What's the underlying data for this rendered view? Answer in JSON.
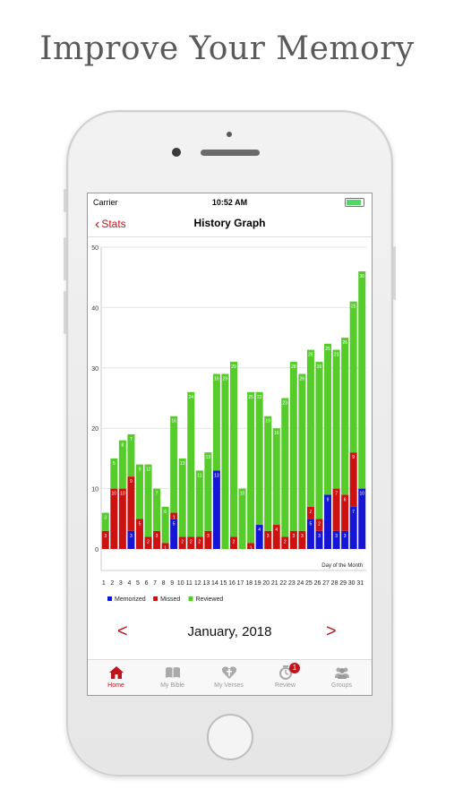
{
  "headline": "Improve Your Memory",
  "status_bar": {
    "carrier": "Carrier",
    "time": "10:52 AM"
  },
  "nav": {
    "back_label": "Stats",
    "title": "History Graph"
  },
  "chart_data": {
    "type": "bar",
    "stacked": true,
    "xlabel": "Day of the Month",
    "ylim": [
      0,
      50
    ],
    "yticks": [
      0,
      10,
      20,
      30,
      40,
      50
    ],
    "categories": [
      1,
      2,
      3,
      4,
      5,
      6,
      7,
      8,
      9,
      10,
      11,
      12,
      13,
      14,
      15,
      16,
      17,
      18,
      19,
      20,
      21,
      22,
      23,
      24,
      25,
      26,
      27,
      28,
      29,
      30,
      31
    ],
    "series": [
      {
        "name": "Memorized",
        "color": "#1515d6",
        "values": [
          0,
          0,
          0,
          3,
          0,
          0,
          0,
          0,
          5,
          0,
          0,
          0,
          0,
          13,
          0,
          0,
          0,
          0,
          4,
          0,
          0,
          0,
          0,
          0,
          5,
          3,
          9,
          3,
          3,
          7,
          10
        ],
        "labels": [
          "",
          "",
          "",
          "3",
          "",
          "",
          "",
          "",
          "5",
          "",
          "",
          "",
          "",
          "13",
          "",
          "",
          "",
          "",
          "4",
          "",
          "",
          "",
          "",
          "",
          "5",
          "3",
          "9",
          "3",
          "3",
          "7",
          "10"
        ]
      },
      {
        "name": "Missed",
        "color": "#cc1111",
        "values": [
          3,
          10,
          10,
          9,
          5,
          2,
          3,
          1,
          1,
          2,
          2,
          2,
          3,
          0,
          0,
          2,
          0,
          1,
          0,
          3,
          4,
          2,
          3,
          3,
          2,
          2,
          0,
          7,
          6,
          9,
          0
        ],
        "labels": [
          "3",
          "10",
          "10",
          "9",
          "5",
          "2",
          "3",
          "1",
          "1",
          "2",
          "2",
          "2",
          "3",
          "",
          "",
          "2",
          "",
          "1",
          "",
          "3",
          "4",
          "2",
          "3",
          "3",
          "2",
          "2",
          "",
          "7",
          "6",
          "9",
          ""
        ]
      },
      {
        "name": "Reviewed",
        "color": "#55cc2a",
        "values": [
          3,
          5,
          8,
          7,
          9,
          12,
          7,
          6,
          16,
          13,
          24,
          11,
          13,
          16,
          29,
          29,
          10,
          25,
          22,
          19,
          16,
          23,
          28,
          26,
          26,
          26,
          25,
          23,
          26,
          25,
          36
        ],
        "labels": [
          "3",
          "5",
          "8",
          "7",
          "9",
          "12",
          "7",
          "6",
          "16",
          "13",
          "24",
          "11",
          "13",
          "16",
          "29",
          "29",
          "10",
          "25",
          "22",
          "19",
          "16",
          "23",
          "28",
          "26",
          "26",
          "26",
          "25",
          "23",
          "26",
          "25",
          "36"
        ]
      }
    ]
  },
  "month": {
    "label": "January, 2018",
    "prev": "<",
    "next": ">"
  },
  "tabs": [
    {
      "label": "Home",
      "icon": "home-icon",
      "active": true
    },
    {
      "label": "My Bible",
      "icon": "bible-icon"
    },
    {
      "label": "My Verses",
      "icon": "verses-icon"
    },
    {
      "label": "Review",
      "icon": "review-icon",
      "badge": "1"
    },
    {
      "label": "Groups",
      "icon": "groups-icon"
    }
  ]
}
